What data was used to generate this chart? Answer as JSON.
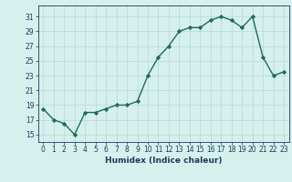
{
  "x": [
    0,
    1,
    2,
    3,
    4,
    5,
    6,
    7,
    8,
    9,
    10,
    11,
    12,
    13,
    14,
    15,
    16,
    17,
    18,
    19,
    20,
    21,
    22,
    23
  ],
  "y": [
    18.5,
    17.0,
    16.5,
    15.0,
    18.0,
    18.0,
    18.5,
    19.0,
    19.0,
    19.5,
    23.0,
    25.5,
    27.0,
    29.0,
    29.5,
    29.5,
    30.5,
    31.0,
    30.5,
    29.5,
    31.0,
    25.5,
    23.0,
    23.5
  ],
  "xlabel": "Humidex (Indice chaleur)",
  "xlim": [
    -0.5,
    23.5
  ],
  "ylim": [
    14.0,
    32.5
  ],
  "yticks": [
    15,
    17,
    19,
    21,
    23,
    25,
    27,
    29,
    31
  ],
  "xticks": [
    0,
    1,
    2,
    3,
    4,
    5,
    6,
    7,
    8,
    9,
    10,
    11,
    12,
    13,
    14,
    15,
    16,
    17,
    18,
    19,
    20,
    21,
    22,
    23
  ],
  "line_color": "#1f6b58",
  "marker": "D",
  "marker_size": 2.2,
  "bg_color": "#d5f0ed",
  "grid_color": "#b8d8d4",
  "xlabel_color": "#1a3a5c",
  "tick_color": "#1a3a5c"
}
